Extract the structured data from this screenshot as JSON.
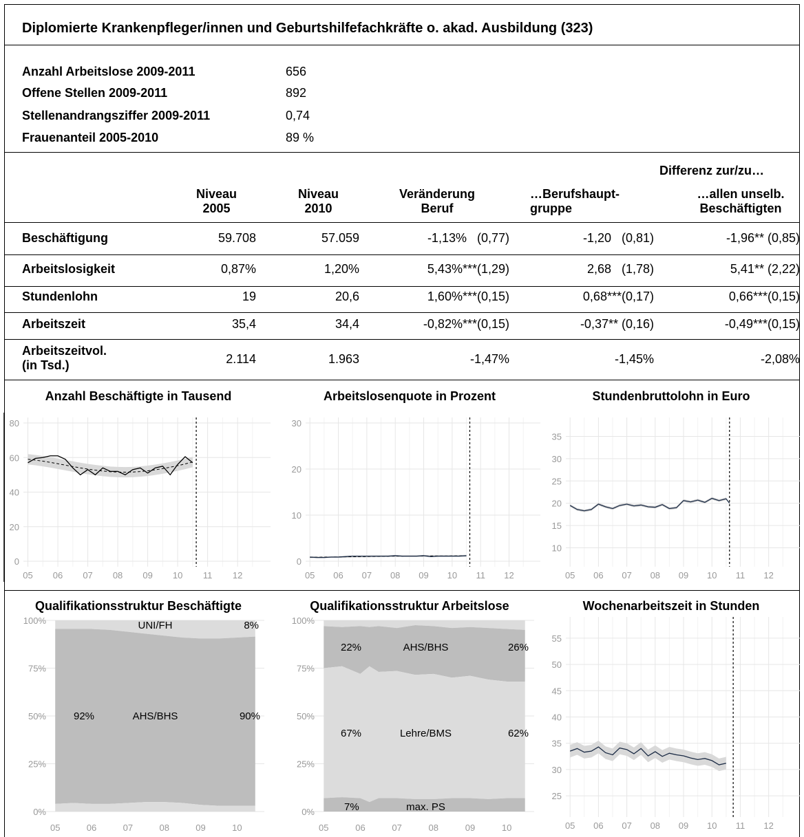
{
  "title": "Diplomierte Krankenpfleger/innen und Geburtshilfefachkräfte o. akad. Ausbildung (323)",
  "summary": [
    {
      "label": "Anzahl Arbeitslose 2009-2011",
      "value": "656"
    },
    {
      "label": "Offene Stellen 2009-2011",
      "value": "892"
    },
    {
      "label": "Stellenandrangsziffer 2009-2011",
      "value": "0,74"
    },
    {
      "label": "Frauenanteil 2005-2010",
      "value": "89 %"
    }
  ],
  "table": {
    "group_header": "Differenz zur/zu…",
    "headers": [
      "Niveau\n2005",
      "Niveau\n2010",
      "Veränderung\nBeruf",
      "…Berufshaupt-\ngruppe",
      "…allen unselb.\nBeschäftigten"
    ],
    "rows": [
      {
        "label": "Beschäftigung",
        "cells": [
          "59.708",
          "57.059",
          "-1,13%   (0,77)",
          "-1,20   (0,81)",
          "-1,96** (0,85)"
        ]
      },
      {
        "label": "Arbeitslosigkeit",
        "cells": [
          "0,87%",
          "1,20%",
          "5,43%***(1,29)",
          "2,68   (1,78)",
          "5,41** (2,22)"
        ]
      },
      {
        "label": "Stundenlohn",
        "cells": [
          "19",
          "20,6",
          "1,60%***(0,15)",
          "0,68***(0,17)",
          "0,66***(0,15)"
        ]
      },
      {
        "label": "Arbeitszeit",
        "cells": [
          "35,4",
          "34,4",
          "-0,82%***(0,15)",
          "-0,37** (0,16)",
          "-0,49***(0,15)"
        ]
      },
      {
        "label": "Arbeitszeitvol.\n(in Tsd.)",
        "cells": [
          "2.114",
          "1.963",
          "-1,47%",
          "-1,45%",
          "-2,08%"
        ]
      }
    ]
  },
  "colors": {
    "band": "#d9d9d9",
    "area_dark": "#bdbdbd",
    "area_light": "#dcdcdc",
    "grid": "#e6e6e6",
    "line_dark": "#1a2a44"
  },
  "chart_data": [
    {
      "type": "line",
      "title": "Anzahl Beschäftigte in Tausend",
      "x_ticks": [
        "05",
        "06",
        "07",
        "08",
        "09",
        "10",
        "11",
        "12"
      ],
      "ylim": [
        0,
        80
      ],
      "y_ticks": [
        0,
        20,
        40,
        60,
        80
      ],
      "x": [
        2005.0,
        2005.25,
        2005.5,
        2005.75,
        2006.0,
        2006.25,
        2006.5,
        2006.75,
        2007.0,
        2007.25,
        2007.5,
        2007.75,
        2008.0,
        2008.25,
        2008.5,
        2008.75,
        2009.0,
        2009.25,
        2009.5,
        2009.75,
        2010.0,
        2010.25,
        2010.5
      ],
      "values": [
        57,
        59.5,
        60,
        61,
        61,
        59,
        54,
        50,
        53,
        50,
        54,
        52,
        52,
        50,
        53,
        54,
        51,
        54,
        55,
        50,
        56,
        60.5,
        57
      ],
      "trend": [
        59,
        58.5,
        57.9,
        57.2,
        56.4,
        55.6,
        54.8,
        54,
        53.3,
        52.7,
        52.2,
        51.8,
        51.6,
        51.5,
        51.6,
        51.9,
        52.3,
        52.9,
        53.6,
        54.4,
        55.3,
        56.3,
        57.4
      ],
      "band_width": 3,
      "vline": 2010.62
    },
    {
      "type": "line",
      "title": "Arbeitslosenquote in Prozent",
      "x_ticks": [
        "05",
        "06",
        "07",
        "08",
        "09",
        "10",
        "11",
        "12"
      ],
      "ylim": [
        0,
        30
      ],
      "y_ticks": [
        0,
        10,
        20,
        30
      ],
      "x": [
        2005.0,
        2005.25,
        2005.5,
        2005.75,
        2006.0,
        2006.25,
        2006.5,
        2006.75,
        2007.0,
        2007.25,
        2007.5,
        2007.75,
        2008.0,
        2008.25,
        2008.5,
        2008.75,
        2009.0,
        2009.25,
        2009.5,
        2009.75,
        2010.0,
        2010.25,
        2010.5
      ],
      "values": [
        0.9,
        0.8,
        0.8,
        0.9,
        0.9,
        1.0,
        1.1,
        1.1,
        1.1,
        1.1,
        1.1,
        1.1,
        1.2,
        1.1,
        1.1,
        1.1,
        1.2,
        1.0,
        1.1,
        1.1,
        1.1,
        1.1,
        1.2
      ],
      "trend": [
        0.85,
        0.86,
        0.88,
        0.9,
        0.92,
        0.95,
        0.98,
        1.0,
        1.02,
        1.05,
        1.07,
        1.09,
        1.1,
        1.11,
        1.12,
        1.12,
        1.13,
        1.13,
        1.14,
        1.14,
        1.15,
        1.16,
        1.17
      ],
      "band_width": 0.2,
      "vline": 2010.62
    },
    {
      "type": "line",
      "title": "Stundenbruttolohn in Euro",
      "x_ticks": [
        "05",
        "06",
        "07",
        "08",
        "09",
        "10",
        "11",
        "12"
      ],
      "ylim": [
        7,
        38
      ],
      "y_ticks": [
        10,
        15,
        20,
        25,
        30,
        35
      ],
      "x": [
        2005.0,
        2005.25,
        2005.5,
        2005.75,
        2006.0,
        2006.25,
        2006.5,
        2006.75,
        2007.0,
        2007.25,
        2007.5,
        2007.75,
        2008.0,
        2008.25,
        2008.5,
        2008.75,
        2009.0,
        2009.25,
        2009.5,
        2009.75,
        2010.0,
        2010.25,
        2010.5
      ],
      "values": [
        19.5,
        18.6,
        18.3,
        18.6,
        19.8,
        19.2,
        18.8,
        19.5,
        19.8,
        19.4,
        19.6,
        19.2,
        19.1,
        19.7,
        18.8,
        19.0,
        20.6,
        20.3,
        20.7,
        20.2,
        21.1,
        20.6,
        21.0
      ],
      "band_width": 0.3,
      "vline": 2010.62,
      "end_value": 20.0
    },
    {
      "type": "area",
      "title": "Qualifikationsstruktur Beschäftigte",
      "x_ticks": [
        "05",
        "06",
        "07",
        "08",
        "09",
        "10"
      ],
      "y_ticks": [
        "0%",
        "25%",
        "50%",
        "75%",
        "100%"
      ],
      "categories": [
        "UNI/FH",
        "AHS/BHS"
      ],
      "labels": {
        "top_name": "UNI/FH",
        "top_right": "8%",
        "mid_name": "AHS/BHS",
        "mid_left": "92%",
        "mid_right": "90%"
      },
      "x": [
        2005.0,
        2005.5,
        2006.0,
        2006.5,
        2007.0,
        2007.5,
        2008.0,
        2008.5,
        2009.0,
        2009.5,
        2010.0,
        2010.5
      ],
      "upper": [
        95.5,
        95.5,
        95.5,
        95,
        94,
        93,
        92,
        91,
        90.5,
        90.5,
        91,
        91.5
      ],
      "lower": [
        4,
        4.5,
        4,
        4,
        4.5,
        5,
        5,
        4.5,
        3.5,
        3,
        3,
        3
      ],
      "bottom_top": [
        4,
        4.5,
        4,
        4,
        4.5,
        5,
        5,
        4.5,
        3.5,
        3,
        3,
        3
      ]
    },
    {
      "type": "area",
      "title": "Qualifikationsstruktur Arbeitslose",
      "x_ticks": [
        "05",
        "06",
        "07",
        "08",
        "09",
        "10"
      ],
      "y_ticks": [
        "0%",
        "25%",
        "50%",
        "75%",
        "100%"
      ],
      "categories": [
        "AHS/BHS",
        "Lehre/BMS",
        "max. PS"
      ],
      "labels": {
        "top_name": "AHS/BHS",
        "top_left": "22%",
        "top_right": "26%",
        "mid_name": "Lehre/BMS",
        "mid_left": "67%",
        "mid_right": "62%",
        "bot_name": "max. PS",
        "bot_left": "7%"
      },
      "x": [
        2005.0,
        2005.5,
        2006.0,
        2006.25,
        2006.5,
        2007.0,
        2007.5,
        2008.0,
        2008.5,
        2009.0,
        2009.5,
        2010.0,
        2010.5
      ],
      "top_light": [
        97,
        96.5,
        97,
        96.5,
        97,
        96,
        97.5,
        97,
        96,
        96.5,
        96,
        95.5,
        95
      ],
      "ahs_lower": [
        75,
        76,
        72,
        76,
        73,
        73.5,
        71.5,
        72,
        70,
        71,
        69,
        68,
        68
      ],
      "ps_upper": [
        7,
        7.5,
        7,
        5,
        7,
        7,
        6.5,
        6.5,
        7,
        7,
        6.5,
        7,
        7
      ]
    },
    {
      "type": "line",
      "title": "Wochenarbeitszeit in Stunden",
      "x_ticks": [
        "05",
        "06",
        "07",
        "08",
        "09",
        "10",
        "11",
        "12"
      ],
      "ylim": [
        22,
        58
      ],
      "y_ticks": [
        25,
        30,
        35,
        40,
        45,
        50,
        55
      ],
      "x": [
        2005.0,
        2005.25,
        2005.5,
        2005.75,
        2006.0,
        2006.25,
        2006.5,
        2006.75,
        2007.0,
        2007.25,
        2007.5,
        2007.75,
        2008.0,
        2008.25,
        2008.5,
        2008.75,
        2009.0,
        2009.25,
        2009.5,
        2009.75,
        2010.0,
        2010.25,
        2010.5
      ],
      "values": [
        33.5,
        34,
        33.3,
        33.5,
        34.3,
        33.2,
        32.8,
        34.1,
        33.8,
        33,
        34,
        32.6,
        33.4,
        32.5,
        33.1,
        32.8,
        32.6,
        32.2,
        31.9,
        32.1,
        31.7,
        30.9,
        31.2
      ],
      "band_width": 1.2,
      "vline": 2010.75
    }
  ]
}
